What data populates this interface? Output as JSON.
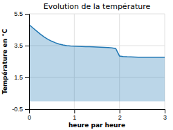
{
  "chart_data": {
    "type": "area",
    "title": "Evolution de la température",
    "xlabel": "heure par heure",
    "ylabel": "Température en °C",
    "xlim": [
      0,
      3
    ],
    "ylim": [
      -0.5,
      5.5
    ],
    "xticks": [
      0,
      1,
      2,
      3
    ],
    "yticks": [
      -0.5,
      1.5,
      3.5,
      5.5
    ],
    "grid": true,
    "x": [
      0,
      0.083,
      0.167,
      0.25,
      0.333,
      0.417,
      0.5,
      0.583,
      0.667,
      0.75,
      0.833,
      0.917,
      1.0,
      1.083,
      1.167,
      1.25,
      1.333,
      1.417,
      1.5,
      1.583,
      1.667,
      1.75,
      1.833,
      1.917,
      2.0,
      2.083,
      2.167,
      2.25,
      2.333,
      2.417,
      2.5,
      2.583,
      2.667,
      2.75,
      2.833,
      2.917,
      3.0
    ],
    "values": [
      4.82,
      4.62,
      4.42,
      4.22,
      4.05,
      3.9,
      3.78,
      3.68,
      3.6,
      3.54,
      3.5,
      3.48,
      3.47,
      3.46,
      3.45,
      3.44,
      3.43,
      3.42,
      3.41,
      3.4,
      3.39,
      3.38,
      3.36,
      3.32,
      2.85,
      2.82,
      2.8,
      2.79,
      2.78,
      2.77,
      2.77,
      2.77,
      2.77,
      2.77,
      2.77,
      2.77,
      2.77
    ]
  }
}
